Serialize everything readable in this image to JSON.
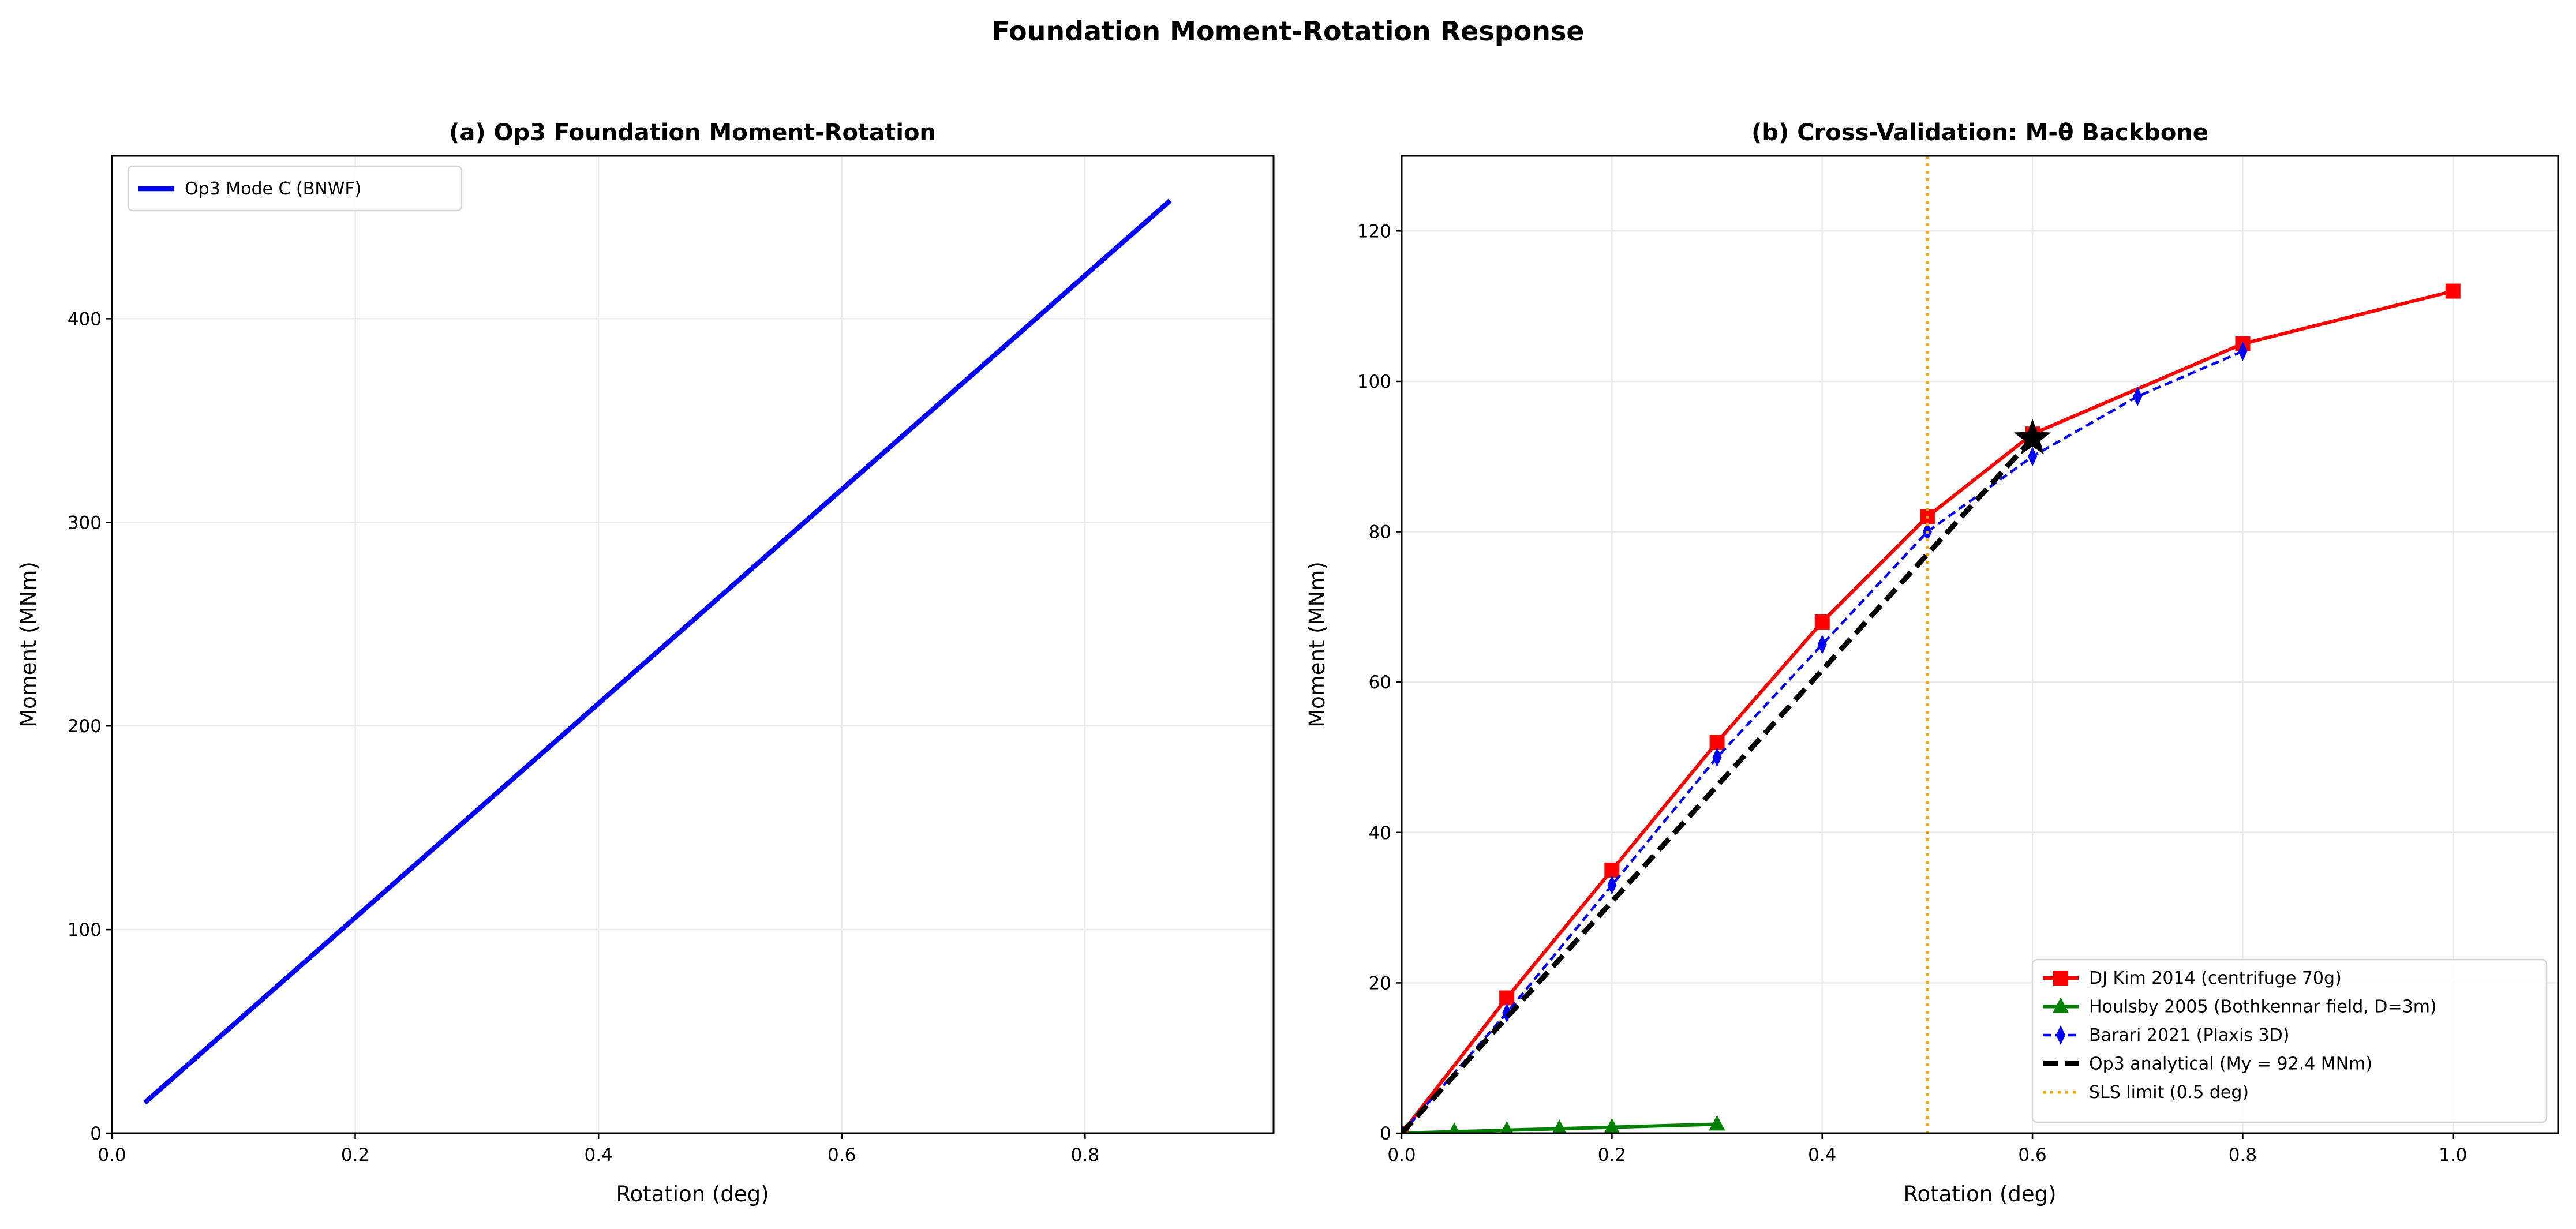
{
  "suptitle": "Foundation Moment-Rotation Response",
  "chart_data": [
    {
      "type": "line",
      "title": "(a) Op3 Foundation Moment-Rotation",
      "xlabel": "Rotation (deg)",
      "ylabel": "Moment (MNm)",
      "xlim": [
        0,
        0.955
      ],
      "ylim": [
        0,
        480
      ],
      "xticks": [
        "0.0",
        "0.2",
        "0.4",
        "0.6",
        "0.8"
      ],
      "yticks": [
        "0",
        "100",
        "200",
        "300",
        "400"
      ],
      "grid": true,
      "legend_position": "top-left",
      "series": [
        {
          "name": "Op3 Mode C (BNWF)",
          "color": "#0000ff",
          "style": "solid",
          "marker": "none",
          "x": [
            0.027,
            0.87
          ],
          "y": [
            15,
            458
          ]
        }
      ]
    },
    {
      "type": "line",
      "title": "(b) Cross-Validation: M-θ Backbone",
      "xlabel": "Rotation (deg)",
      "ylabel": "Moment (MNm)",
      "xlim": [
        0,
        1.1
      ],
      "ylim": [
        0,
        130
      ],
      "xticks": [
        "0.0",
        "0.2",
        "0.4",
        "0.6",
        "0.8",
        "1.0"
      ],
      "yticks": [
        "0",
        "20",
        "40",
        "60",
        "80",
        "100",
        "120"
      ],
      "grid": true,
      "legend_position": "lower-right",
      "series": [
        {
          "name": "DJ Kim 2014 (centrifuge 70g)",
          "color": "#ff0000",
          "style": "solid",
          "marker": "square",
          "x": [
            0,
            0.1,
            0.2,
            0.3,
            0.4,
            0.5,
            0.6,
            0.8,
            1.0
          ],
          "y": [
            0,
            18,
            35,
            52,
            68,
            82,
            93,
            105,
            112
          ]
        },
        {
          "name": "Houlsby 2005 (Bothkennar field, D=3m)",
          "color": "#008000",
          "style": "solid",
          "marker": "triangle",
          "x": [
            0,
            0.05,
            0.1,
            0.15,
            0.2,
            0.3
          ],
          "y": [
            0,
            0.2,
            0.4,
            0.6,
            0.8,
            1.2
          ]
        },
        {
          "name": "Barari 2021 (Plaxis 3D)",
          "color": "#0000ff",
          "style": "dashed",
          "marker": "thin-diamond",
          "x": [
            0,
            0.1,
            0.2,
            0.3,
            0.4,
            0.5,
            0.6,
            0.7,
            0.8
          ],
          "y": [
            0,
            16,
            33,
            50,
            65,
            80,
            90,
            98,
            104
          ]
        },
        {
          "name": "Op3 analytical (My = 92.4 MNm)",
          "color": "#000000",
          "style": "bold-dashed",
          "marker": "none",
          "x": [
            0,
            0.6
          ],
          "y": [
            0,
            92.4
          ]
        },
        {
          "name": "SLS limit (0.5 deg)",
          "color": "#ffa500",
          "style": "dotted",
          "marker": "none",
          "vline": 0.5
        }
      ],
      "annotations": [
        {
          "type": "star-marker",
          "x": 0.6,
          "y": 92.4,
          "color": "#000000"
        }
      ]
    }
  ]
}
